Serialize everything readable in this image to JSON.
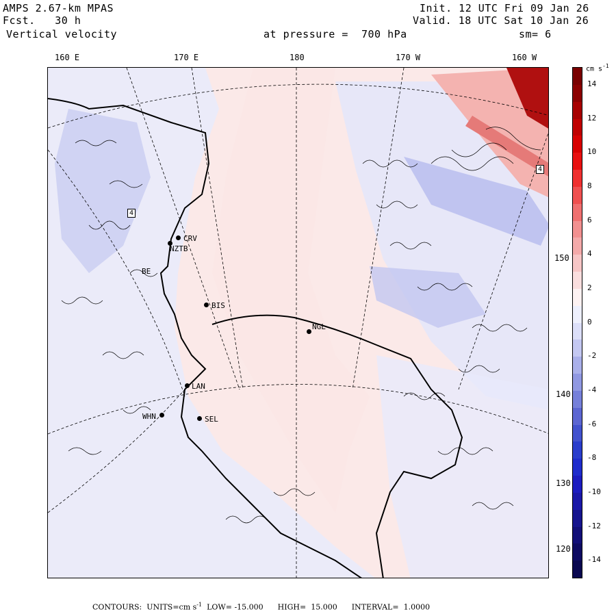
{
  "header": {
    "model": "AMPS 2.67-km MPAS",
    "forecast_label": "Fcst.",
    "forecast_value": "30 h",
    "field": "Vertical velocity",
    "init": "Init. 12 UTC Fri 09 Jan 26",
    "valid": "Valid. 18 UTC Sat 10 Jan 26",
    "pressure_label": "at pressure =",
    "pressure_value": "700 hPa",
    "smoothing": "sm= 6"
  },
  "longitude_labels": [
    "160 E",
    "170 E",
    "180",
    "170 W",
    "160 W"
  ],
  "latitude_labels": [
    "150 W",
    "140 W",
    "130 W",
    "120 W"
  ],
  "stations": [
    "CRV",
    "NZTB",
    "BE",
    "BIS",
    "NGL",
    "LAN",
    "WHN",
    "SEL"
  ],
  "marker_labels": [
    "4",
    "4"
  ],
  "colorbar": {
    "unit": "cm s",
    "unit_exponent": "-1",
    "labels": [
      "14",
      "12",
      "10",
      "8",
      "6",
      "4",
      "2",
      "0",
      "-2",
      "-4",
      "-6",
      "-8",
      "-10",
      "-12",
      "-14"
    ],
    "colors": [
      "#7a0000",
      "#8c0000",
      "#a80000",
      "#c00000",
      "#d80000",
      "#e81010",
      "#f03030",
      "#f05050",
      "#f07070",
      "#f29090",
      "#f4aaaa",
      "#f7c6c6",
      "#fadede",
      "#fdf2f2",
      "#eef0fd",
      "#dcdff9",
      "#c4c8f2",
      "#aab0ea",
      "#9098e2",
      "#7680da",
      "#5c66d2",
      "#4252ce",
      "#2a3dcc",
      "#1f2ccc",
      "#1c1cc0",
      "#1a18a8",
      "#16148e",
      "#120f78",
      "#0e0b62",
      "#0a0850"
    ]
  },
  "footer": {
    "contours_label": "CONTOURS:",
    "units_label": "UNITS=cm s",
    "units_exponent": "-1",
    "low_label": "LOW=",
    "low": "-15.000",
    "high_label": "HIGH=",
    "high": "15.000",
    "interval_label": "INTERVAL=",
    "interval": "1.0000"
  }
}
